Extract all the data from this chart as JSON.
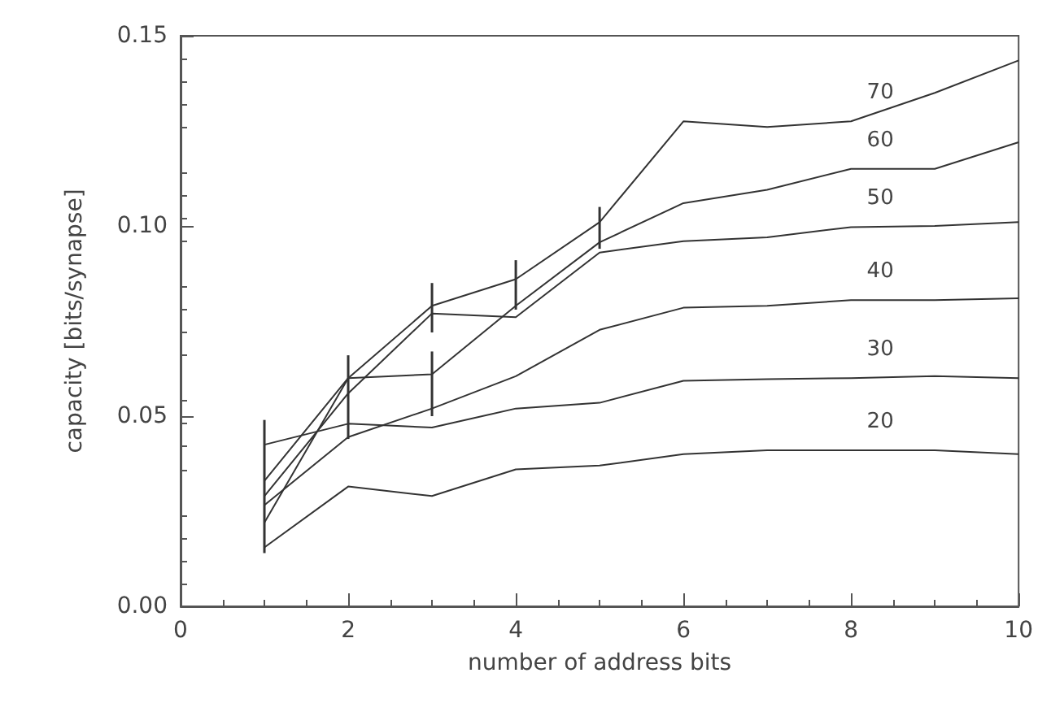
{
  "chart_data": {
    "type": "line",
    "xlabel": "number of address bits",
    "ylabel": "capacity [bits/synapse]",
    "x": [
      1,
      2,
      3,
      4,
      5,
      6,
      7,
      8,
      9,
      10
    ],
    "series": [
      {
        "name": "20",
        "color": "#333333",
        "values": [
          0.0155,
          0.0315,
          0.029,
          0.036,
          0.037,
          0.04,
          0.041,
          0.041,
          0.041,
          0.04
        ]
      },
      {
        "name": "30",
        "color": "#333333",
        "values": [
          0.0425,
          0.048,
          0.047,
          0.052,
          0.0535,
          0.0593,
          0.0597,
          0.06,
          0.0605,
          0.06
        ]
      },
      {
        "name": "40",
        "color": "#333333",
        "values": [
          0.0266,
          0.0445,
          0.052,
          0.0605,
          0.0727,
          0.0785,
          0.079,
          0.0805,
          0.0805,
          0.081
        ]
      },
      {
        "name": "50",
        "color": "#333333",
        "values": [
          0.029,
          0.056,
          0.077,
          0.076,
          0.093,
          0.096,
          0.097,
          0.0997,
          0.1,
          0.101
        ]
      },
      {
        "name": "60",
        "color": "#333333",
        "values": [
          0.022,
          0.06,
          0.061,
          0.079,
          0.0957,
          0.106,
          0.1095,
          0.115,
          0.115,
          0.122
        ],
        "errors": [
          null,
          null,
          [
            0.05,
            0.067
          ],
          null,
          null,
          null,
          null,
          null,
          null,
          null
        ]
      },
      {
        "name": "70",
        "color": "#333333",
        "values": [
          0.033,
          0.06,
          0.079,
          0.086,
          0.101,
          0.1275,
          0.126,
          0.1275,
          0.135,
          0.1435
        ],
        "errors": [
          [
            0.014,
            0.049
          ],
          [
            0.044,
            0.066
          ],
          [
            0.072,
            0.085
          ],
          [
            0.078,
            0.091
          ],
          [
            0.094,
            0.105
          ],
          null,
          null,
          null,
          null,
          null
        ]
      }
    ],
    "xlim": [
      0,
      10
    ],
    "xticks": [
      0,
      2,
      4,
      6,
      8,
      10
    ],
    "ylim": [
      0,
      0.15
    ],
    "yticks": [
      {
        "value": 0,
        "label": "0.00"
      },
      {
        "value": 0.05,
        "label": "0.05"
      },
      {
        "value": 0.1,
        "label": "0.10"
      },
      {
        "value": 0.15,
        "label": "0.15"
      }
    ],
    "grid": false,
    "legend": false,
    "marker": "none",
    "line_style": "solid"
  }
}
